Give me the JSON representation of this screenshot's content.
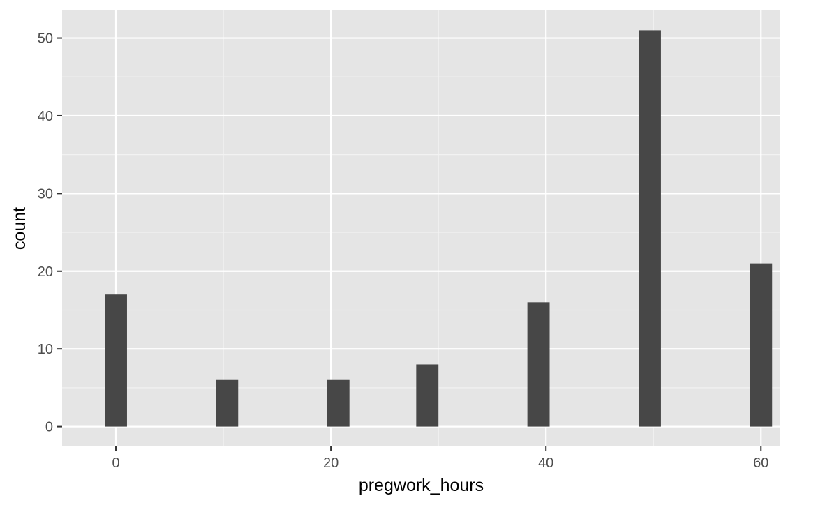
{
  "chart_data": {
    "type": "bar",
    "title": "",
    "xlabel": "pregwork_hours",
    "ylabel": "count",
    "xlim": [
      -5,
      61.8
    ],
    "ylim": [
      -2.55,
      53.55
    ],
    "x_ticks": [
      0,
      20,
      40,
      60
    ],
    "x_minor_ticks": [
      10,
      30,
      50
    ],
    "y_ticks": [
      0,
      10,
      20,
      30,
      40,
      50
    ],
    "y_minor_ticks": [
      5,
      15,
      25,
      35,
      45
    ],
    "bin_width": 2.07,
    "bars": [
      {
        "x": 0,
        "value": 17
      },
      {
        "x": 10.34,
        "value": 6
      },
      {
        "x": 20.69,
        "value": 6
      },
      {
        "x": 28.97,
        "value": 8
      },
      {
        "x": 39.31,
        "value": 16
      },
      {
        "x": 49.66,
        "value": 51
      },
      {
        "x": 60,
        "value": 21
      }
    ],
    "grid": true,
    "colors": {
      "panel_background": "#e5e5e5",
      "grid_major": "#ffffff",
      "grid_minor": "#f2f2f2",
      "bar_fill": "#474747",
      "tick_mark": "#333333"
    }
  }
}
